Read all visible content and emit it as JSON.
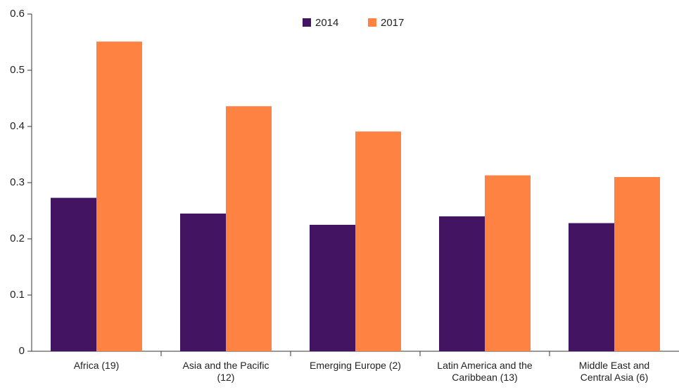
{
  "chart_data": {
    "type": "bar",
    "categories": [
      "Africa (19)",
      "Asia and the Pacific (12)",
      "Emerging Europe (2)",
      "Latin America and the Caribbean (13)",
      "Middle East and Central Asia (6)"
    ],
    "series": [
      {
        "name": "2014",
        "color": "#421462",
        "values": [
          0.273,
          0.245,
          0.225,
          0.24,
          0.228
        ]
      },
      {
        "name": "2017",
        "color": "#fe8241",
        "values": [
          0.551,
          0.436,
          0.391,
          0.313,
          0.31
        ]
      }
    ],
    "ylim": [
      0,
      0.6
    ],
    "yticks": [
      0,
      0.1,
      0.2,
      0.3,
      0.4,
      0.5,
      0.6
    ],
    "legend": "top"
  }
}
